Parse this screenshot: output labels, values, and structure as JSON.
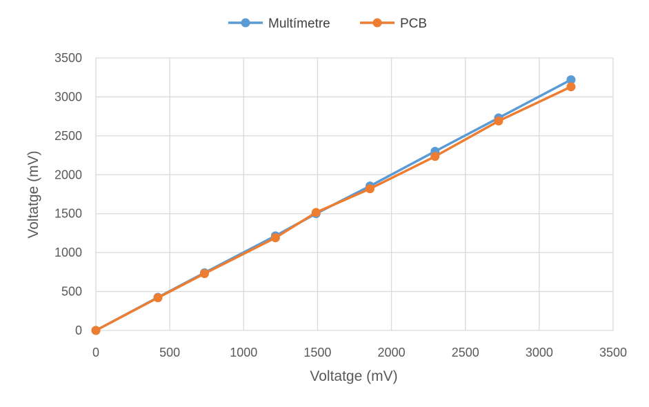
{
  "chart_data": {
    "type": "scatter",
    "title": "",
    "xlabel": "Voltatge (mV)",
    "ylabel": "Voltatge (mV)",
    "xlim": [
      0,
      3500
    ],
    "ylim": [
      0,
      3500
    ],
    "x_ticks": [
      "0",
      "500",
      "1000",
      "1500",
      "2000",
      "2500",
      "3000",
      "3500"
    ],
    "y_ticks": [
      "0",
      "500",
      "1000",
      "1500",
      "2000",
      "2500",
      "3000",
      "3500"
    ],
    "grid": true,
    "legend_position": "top",
    "lines_with_markers": true,
    "series": [
      {
        "name": "Multímetre",
        "color": "#5B9BD5",
        "points": [
          [
            0,
            0
          ],
          [
            420,
            425
          ],
          [
            735,
            740
          ],
          [
            1215,
            1215
          ],
          [
            1490,
            1500
          ],
          [
            1855,
            1855
          ],
          [
            2295,
            2300
          ],
          [
            2725,
            2730
          ],
          [
            3215,
            3220
          ]
        ]
      },
      {
        "name": "PCB",
        "color": "#ED7D31",
        "points": [
          [
            0,
            0
          ],
          [
            420,
            420
          ],
          [
            735,
            730
          ],
          [
            1215,
            1190
          ],
          [
            1490,
            1515
          ],
          [
            1855,
            1820
          ],
          [
            2295,
            2235
          ],
          [
            2725,
            2690
          ],
          [
            3215,
            3130
          ]
        ]
      }
    ]
  }
}
